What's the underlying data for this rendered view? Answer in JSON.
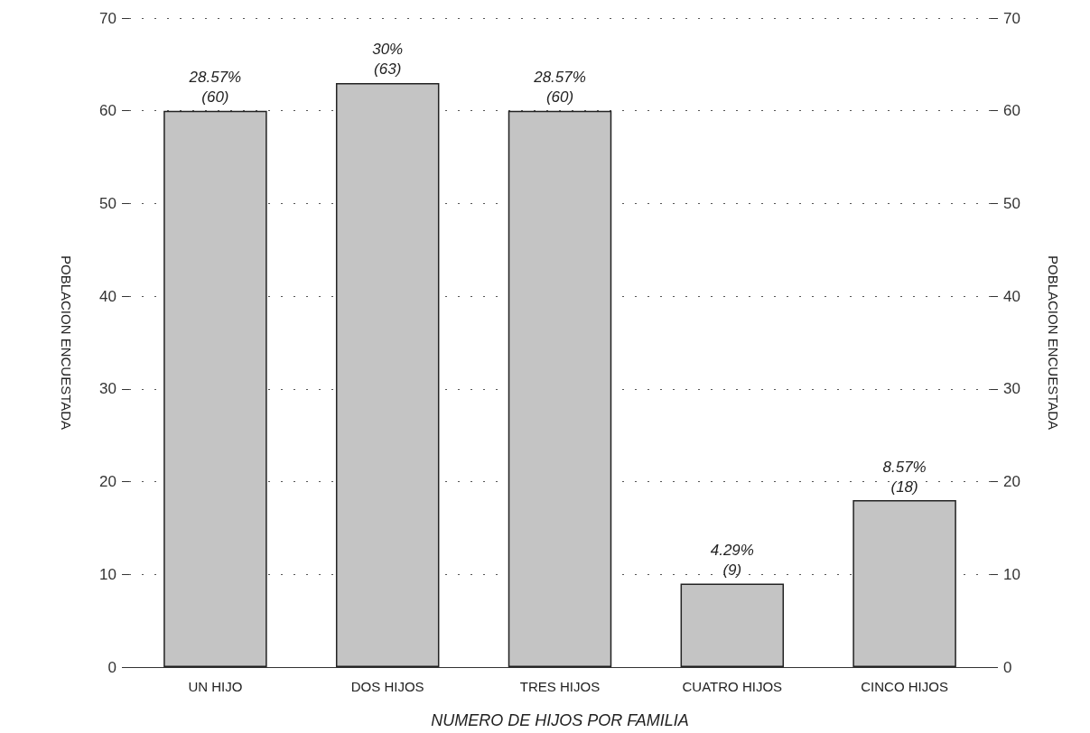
{
  "chart_data": {
    "type": "bar",
    "xlabel": "NUMERO DE HIJOS POR FAMILIA",
    "ylabel": "POBLACION ENCUESTADA",
    "y2label": "POBLACION ENCUESTADA",
    "categories": [
      "UN HIJO",
      "DOS HIJOS",
      "TRES HIJOS",
      "CUATRO HIJOS",
      "CINCO HIJOS"
    ],
    "values": [
      60,
      63,
      60,
      9,
      18
    ],
    "value_labels": [
      "28.57%\n(60)",
      "30%\n(63)",
      "28.57%\n(60)",
      "4.29%\n(9)",
      "8.57%\n(18)"
    ],
    "color": "#c4c4c4",
    "ylim": [
      0,
      70
    ],
    "yticks": [
      0,
      10,
      20,
      30,
      40,
      50,
      60,
      70
    ],
    "y2lim": [
      0,
      70
    ],
    "y2ticks": [
      0,
      10,
      20,
      30,
      40,
      50,
      60,
      70
    ],
    "grid": "y"
  }
}
